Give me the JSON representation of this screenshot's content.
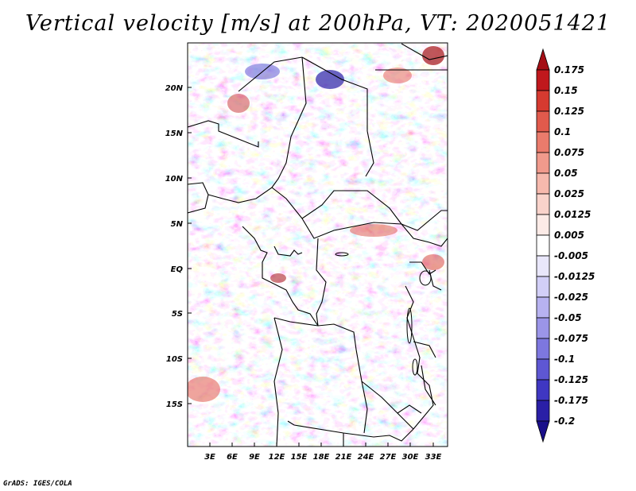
{
  "title": "Vertical velocity [m/s] at 200hPa, VT: 2020051421",
  "credit": "GrADS: IGES/COLA",
  "map": {
    "lat_labels": [
      "20N",
      "15N",
      "10N",
      "5N",
      "EQ",
      "5S",
      "10S",
      "15S"
    ],
    "lon_labels": [
      "3E",
      "6E",
      "9E",
      "12E",
      "15E",
      "18E",
      "21E",
      "24E",
      "27E",
      "30E",
      "33E"
    ]
  },
  "colorbar": {
    "labels": [
      "0.175",
      "0.15",
      "0.125",
      "0.1",
      "0.075",
      "0.05",
      "0.025",
      "0.0125",
      "0.005",
      "-0.005",
      "-0.0125",
      "-0.025",
      "-0.05",
      "-0.075",
      "-0.1",
      "-0.125",
      "-0.175",
      "-0.2"
    ],
    "colors": [
      "#a50f15",
      "#c0181d",
      "#d63a30",
      "#e15a4c",
      "#ea7b6c",
      "#f09a8c",
      "#f6b9ad",
      "#f9d3cb",
      "#fcebe7",
      "#ffffff",
      "#e9e7fb",
      "#d2cff7",
      "#b7b2f0",
      "#9b95e8",
      "#7d77df",
      "#5e57d3",
      "#3f37c2",
      "#2a1fa6",
      "#1a0f8a"
    ]
  }
}
